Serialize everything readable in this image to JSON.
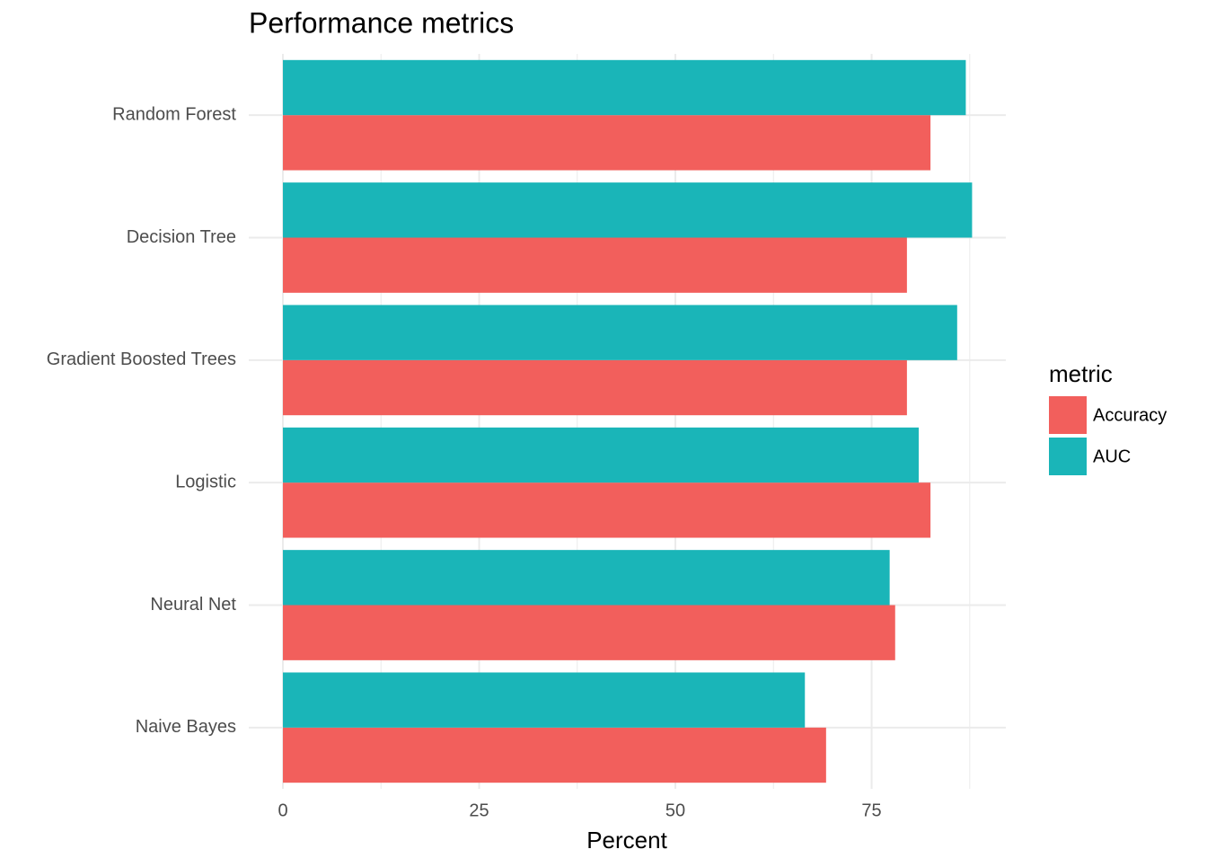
{
  "chart_data": {
    "type": "bar",
    "orientation": "horizontal",
    "title": "Performance metrics",
    "x_label": "Percent",
    "categories": [
      "Random Forest",
      "Decision Tree",
      "Gradient Boosted Trees",
      "Logistic",
      "Neural Net",
      "Naive Bayes"
    ],
    "series": [
      {
        "name": "Accuracy",
        "color": "#f25f5c",
        "values": [
          82.5,
          79.5,
          79.5,
          82.5,
          78.0,
          69.2
        ]
      },
      {
        "name": "AUC",
        "color": "#1ab5b8",
        "values": [
          87.0,
          87.8,
          85.9,
          81.0,
          77.3,
          66.5
        ]
      }
    ],
    "xlim": [
      -4.35,
      92.1
    ],
    "xticks": [
      0,
      25,
      50,
      75
    ],
    "x_minor_gridlines": [
      12.5,
      37.5,
      62.5,
      87.5
    ],
    "grid": true,
    "legend_title": "metric",
    "legend_position": "right"
  }
}
